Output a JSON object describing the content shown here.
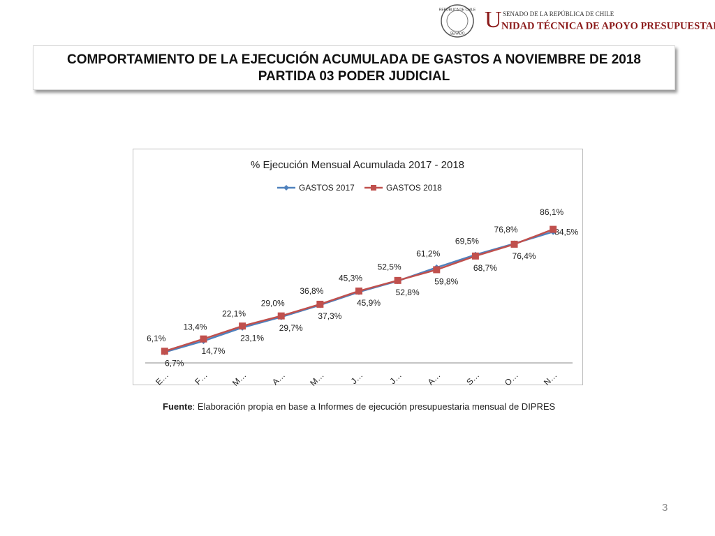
{
  "header": {
    "seal_top": "REPÚBLICA DE CHILE",
    "seal_bottom": "SENADO",
    "logo_top": "SENADO DE LA REPÚBLICA DE CHILE",
    "logo_initial": "U",
    "logo_rest": "NIDAD TÉCNICA DE APOYO PRESUPUESTARIO"
  },
  "title": [
    "COMPORTAMIENTO DE LA EJECUCIÓN ACUMULADA DE GASTOS A NOVIEMBRE DE 2018",
    "PARTIDA 03 PODER JUDICIAL"
  ],
  "chart_data": {
    "type": "line",
    "title": "% Ejecución Mensual Acumulada 2017 - 2018",
    "categories": [
      "E…",
      "F…",
      "M…",
      "A…",
      "M…",
      "J…",
      "J…",
      "A…",
      "S…",
      "O…",
      "N…"
    ],
    "ylim": [
      0,
      100
    ],
    "series": [
      {
        "name": "GASTOS 2017",
        "color": "#4f81bd",
        "values": [
          6.1,
          13.4,
          22.1,
          29.0,
          36.8,
          45.3,
          52.5,
          61.2,
          69.5,
          76.8,
          84.5
        ],
        "value_labels": [
          "6,1%",
          "13,4%",
          "22,1%",
          "29,0%",
          "36,8%",
          "45,3%",
          "52,5%",
          "61,2%",
          "69,5%",
          "76,8%",
          "84,5%"
        ]
      },
      {
        "name": "GASTOS 2018",
        "color": "#c0504d",
        "values": [
          6.7,
          14.7,
          23.1,
          29.7,
          37.3,
          45.9,
          52.8,
          59.8,
          68.7,
          76.4,
          86.1
        ],
        "value_labels": [
          "6,7%",
          "14,7%",
          "23,1%",
          "29,7%",
          "37,3%",
          "45,9%",
          "52,8%",
          "59,8%",
          "68,7%",
          "76,4%",
          "86,1%"
        ]
      }
    ]
  },
  "footer": {
    "source_label": "Fuente",
    "source_text": ": Elaboración propia en base  a Informes de ejecución presupuestaria mensual de DIPRES",
    "page": "3"
  }
}
